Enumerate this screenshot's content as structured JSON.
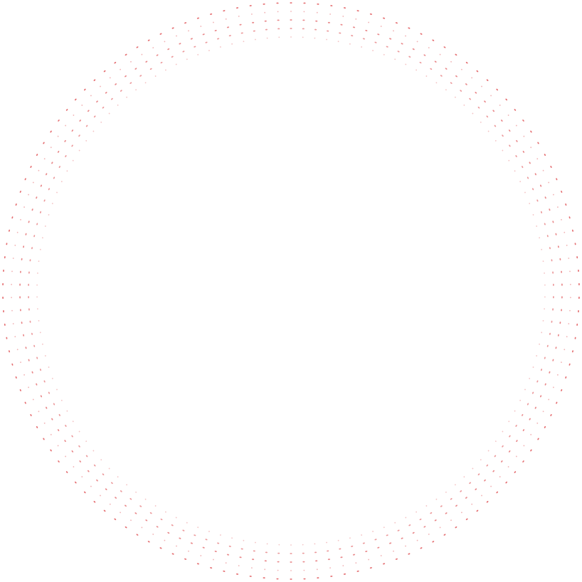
{
  "decoration": {
    "pattern": "concentric-dotted-rings",
    "dot_color": "#e0575a",
    "rings": [
      {
        "opacity": 0.85
      },
      {
        "opacity": 0.45
      },
      {
        "opacity": 0.7
      },
      {
        "opacity": 0.6
      },
      {
        "opacity": 0.35
      }
    ]
  }
}
